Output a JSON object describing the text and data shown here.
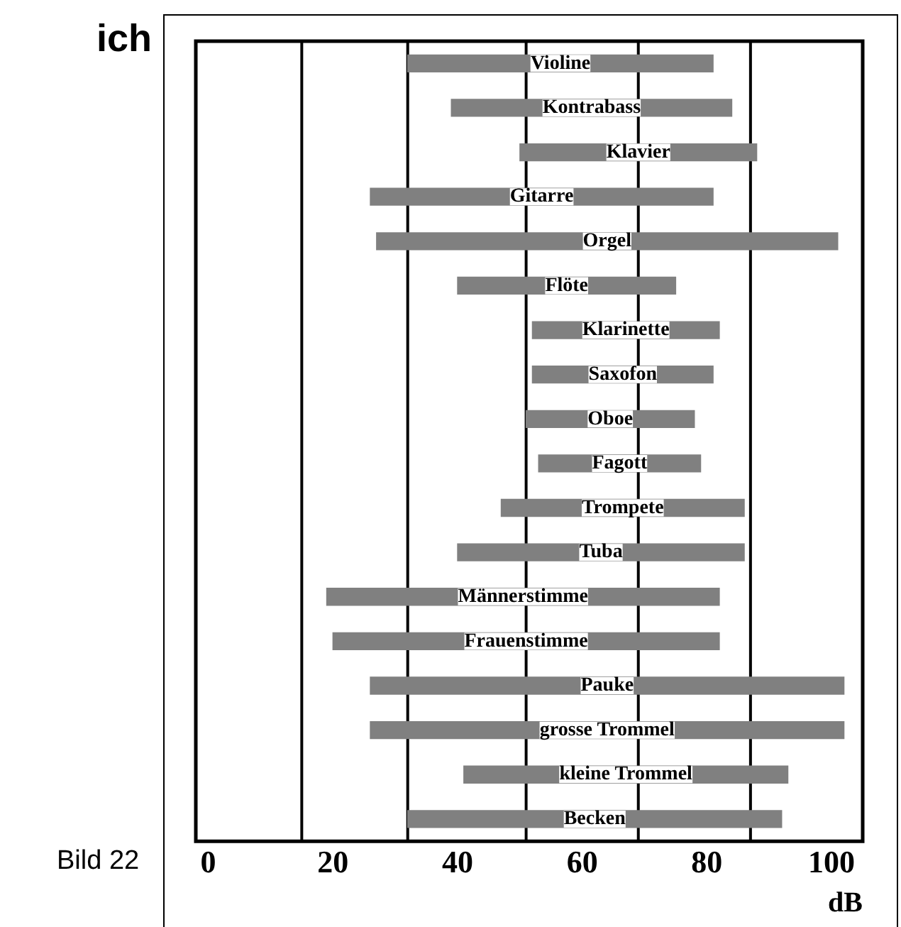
{
  "chart_data": {
    "type": "bar",
    "orientation": "horizontal",
    "title": "ich",
    "xlabel": "dB",
    "annotations": [
      "Bild 22"
    ],
    "categories": [
      "Violine",
      "Kontrabass",
      "Klavier",
      "Gitarre",
      "Orgel",
      "Flöte",
      "Klarinette",
      "Saxofon",
      "Oboe",
      "Fagott",
      "Trompete",
      "Tuba",
      "Männerstimme",
      "Frauenstimme",
      "Pauke",
      "grosse Trommel",
      "kleine Trommel",
      "Becken"
    ],
    "base": [
      32,
      39,
      50,
      26,
      27,
      40,
      52,
      52,
      51,
      53,
      47,
      40,
      19,
      20,
      26,
      26,
      41,
      32
    ],
    "values": [
      49,
      45,
      38,
      55,
      74,
      35,
      30,
      29,
      27,
      26,
      39,
      46,
      63,
      62,
      76,
      76,
      52,
      60
    ],
    "color": "#808080",
    "xlim": [
      -2,
      105
    ],
    "xticks": [
      0,
      20,
      40,
      60,
      80,
      100
    ],
    "ref_lines": [
      {
        "axis": "x",
        "value": 15,
        "color": "#000000"
      },
      {
        "axis": "x",
        "value": 32,
        "color": "#000000"
      },
      {
        "axis": "x",
        "value": 51,
        "color": "#000000"
      },
      {
        "axis": "x",
        "value": 69,
        "color": "#000000"
      },
      {
        "axis": "x",
        "value": 87,
        "color": "#000000"
      }
    ],
    "tick_labels": "x",
    "grid": false,
    "legend": false
  }
}
